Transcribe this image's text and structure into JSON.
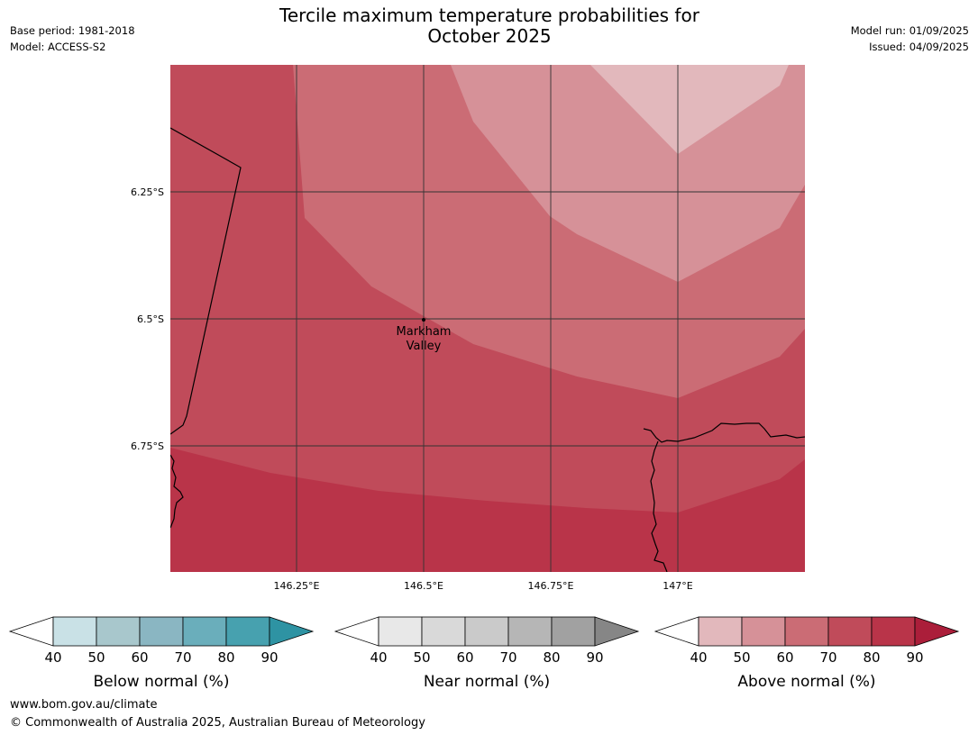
{
  "title_line1": "Tercile maximum temperature probabilities for",
  "title_line2": "October 2025",
  "meta_left": {
    "base_period": "Base period: 1981-2018",
    "model": "Model: ACCESS-S2"
  },
  "meta_right": {
    "model_run": "Model run: 01/09/2025",
    "issued": "Issued: 04/09/2025"
  },
  "map": {
    "lat_ticks": [
      "6.25°S",
      "6.5°S",
      "6.75°S"
    ],
    "lon_ticks": [
      "146.25°E",
      "146.5°E",
      "146.75°E",
      "147°E"
    ],
    "place_name_line1": "Markham",
    "place_name_line2": "Valley",
    "shading_levels_percent": [
      60,
      70,
      80
    ]
  },
  "colorbars": [
    {
      "name": "below",
      "label": "Below normal (%)",
      "ticks": [
        "40",
        "50",
        "60",
        "70",
        "80",
        "90"
      ],
      "colors": [
        "#ffffff",
        "#c9e1e6",
        "#a8c7cc",
        "#8ab6c2",
        "#6aaebb",
        "#47a1af",
        "#2e93a3"
      ]
    },
    {
      "name": "near",
      "label": "Near normal (%)",
      "ticks": [
        "40",
        "50",
        "60",
        "70",
        "80",
        "90"
      ],
      "colors": [
        "#ffffff",
        "#e8e8e8",
        "#d9d9d9",
        "#cacaca",
        "#b6b6b6",
        "#a1a1a1",
        "#868686"
      ]
    },
    {
      "name": "above",
      "label": "Above normal (%)",
      "ticks": [
        "40",
        "50",
        "60",
        "70",
        "80",
        "90"
      ],
      "colors": [
        "#ffffff",
        "#e2b8bc",
        "#d69198",
        "#cb6c75",
        "#c04b5a",
        "#b93449",
        "#ab1e3a"
      ]
    }
  ],
  "footer": {
    "url": "www.bom.gov.au/climate",
    "copyright": "© Commonwealth of Australia 2025, Australian Bureau of Meteorology"
  }
}
